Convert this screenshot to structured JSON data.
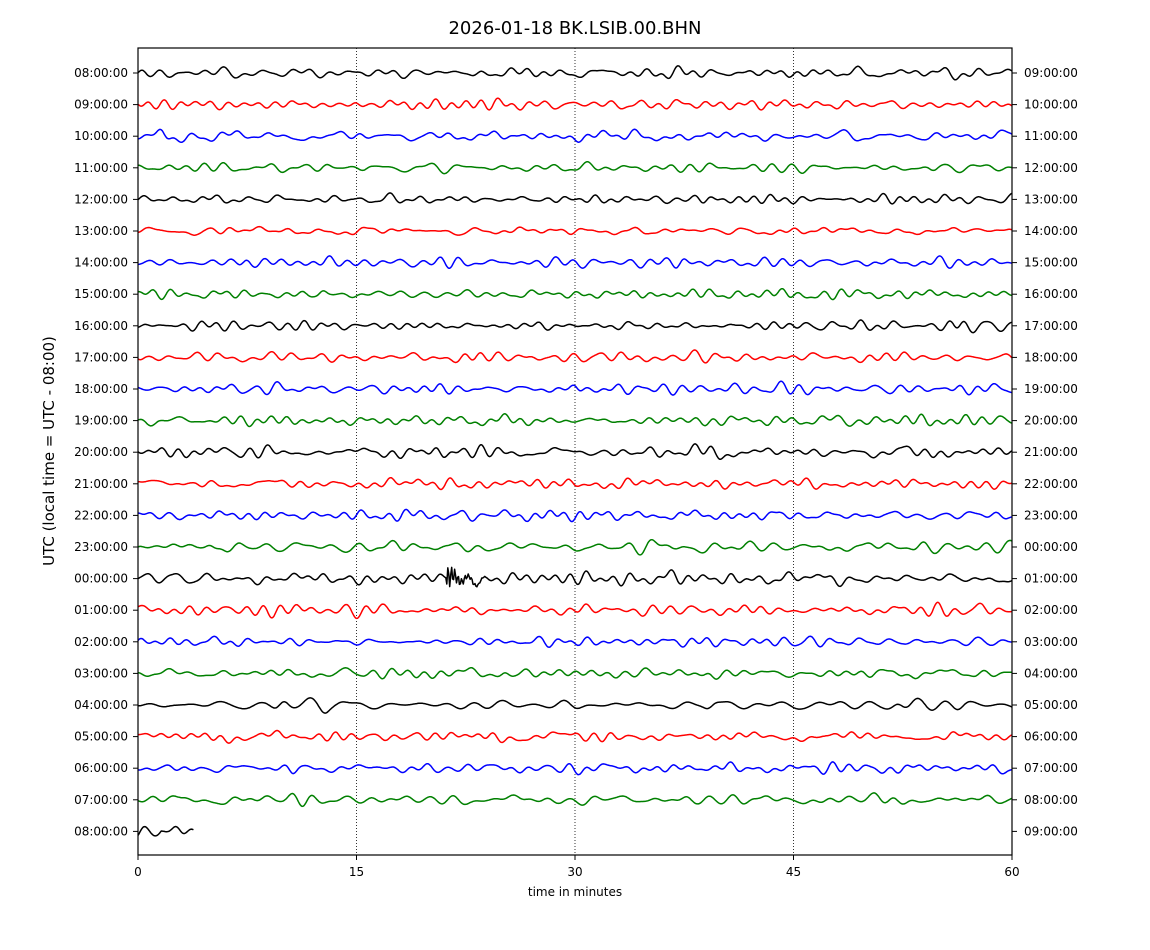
{
  "chart_data": {
    "type": "line",
    "title": "2026-01-18 BK.LSIB.00.BHN",
    "xlabel": "time in minutes",
    "ylabel": "UTC (local time = UTC - 08:00)",
    "xlim": [
      0,
      60
    ],
    "x_ticks": [
      "0",
      "15",
      "30",
      "45",
      "60"
    ],
    "x_tick_values": [
      0,
      15,
      30,
      45,
      60
    ],
    "vertical_gridlines_at": [
      15,
      30,
      45
    ],
    "trace_colors": [
      "#000000",
      "#ff0000",
      "#0000ff",
      "#008000"
    ],
    "left_labels": [
      "08:00:00",
      "09:00:00",
      "10:00:00",
      "11:00:00",
      "12:00:00",
      "13:00:00",
      "14:00:00",
      "15:00:00",
      "16:00:00",
      "17:00:00",
      "18:00:00",
      "19:00:00",
      "20:00:00",
      "21:00:00",
      "22:00:00",
      "23:00:00",
      "00:00:00",
      "01:00:00",
      "02:00:00",
      "03:00:00",
      "04:00:00",
      "05:00:00",
      "06:00:00",
      "07:00:00",
      "08:00:00"
    ],
    "right_labels": [
      "09:00:00",
      "10:00:00",
      "11:00:00",
      "12:00:00",
      "13:00:00",
      "14:00:00",
      "15:00:00",
      "16:00:00",
      "17:00:00",
      "18:00:00",
      "19:00:00",
      "20:00:00",
      "21:00:00",
      "22:00:00",
      "23:00:00",
      "00:00:00",
      "01:00:00",
      "02:00:00",
      "03:00:00",
      "04:00:00",
      "05:00:00",
      "06:00:00",
      "07:00:00",
      "08:00:00",
      "09:00:00"
    ],
    "rows": 25,
    "last_row_end_minute": 3.8,
    "event": {
      "row_index": 16,
      "start_minute": 21.2,
      "end_minute": 23.8
    }
  }
}
